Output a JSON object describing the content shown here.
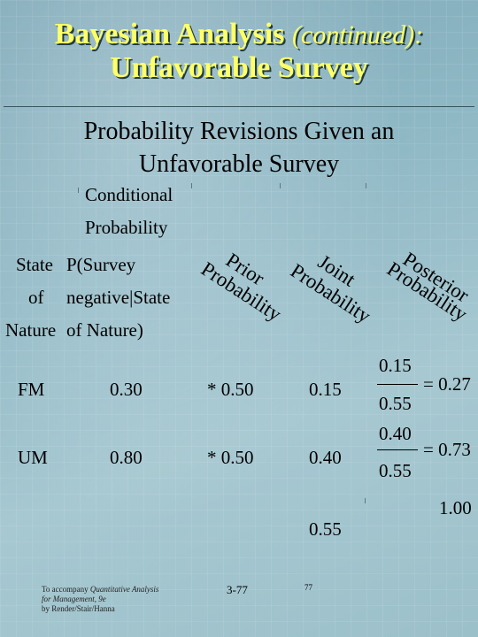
{
  "title": {
    "line1_main": "Bayesian Analysis",
    "line1_cont": "(continued):",
    "line2": "Unfavorable Survey"
  },
  "subtitle": {
    "line1": "Probability Revisions Given an",
    "line2": "Unfavorable Survey"
  },
  "headers": {
    "conditional_l1": "Conditional",
    "conditional_l2": "Probability",
    "state_l1": "State",
    "state_l2": "of",
    "state_l3": "Nature",
    "cond_l1": "P(Survey",
    "cond_l2": "negative|State",
    "cond_l3": "of Nature)",
    "prior_l1": "Prior",
    "prior_l2": "Probability",
    "joint_l1": "Joint",
    "joint_l2": "Probability",
    "post_l1": "Posterior",
    "post_l2": "Probability"
  },
  "rows": [
    {
      "state": "FM",
      "conditional": "0.30",
      "prior": "* 0.50",
      "joint": "0.15",
      "post_num": "0.15",
      "post_den": "0.55",
      "post_val": "= 0.27"
    },
    {
      "state": "UM",
      "conditional": "0.80",
      "prior": "* 0.50",
      "joint": "0.40",
      "post_num": "0.40",
      "post_den": "0.55",
      "post_val": "= 0.73"
    }
  ],
  "totals": {
    "joint": "0.55",
    "posterior": "1.00"
  },
  "footer": {
    "credit_l1": "To accompany Quantitative Analysis",
    "credit_l2": "for Management, 9e",
    "credit_l3": "by Render/Stair/Hanna",
    "slide_number": "3-77",
    "page_number": "77"
  }
}
